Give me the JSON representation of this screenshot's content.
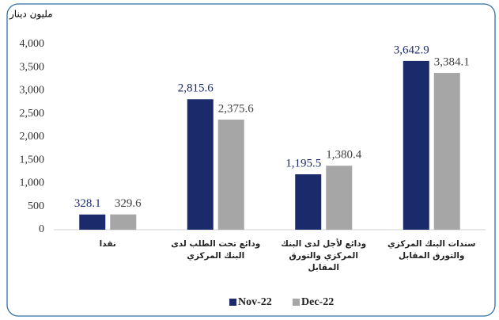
{
  "chart_data": {
    "type": "bar",
    "y_axis_label": "مليون دينار",
    "categories": [
      "نقدا",
      "ودائع تحت الطلب لدى البنك المركزي",
      "ودائع لأجل لدى البنك المركزي والتورق المقابل",
      "سندات البنك المركزي والتورق المقابل"
    ],
    "series": [
      {
        "name": "Nov-22",
        "color": "#1b2a6b",
        "label_color": "#1b2a6b",
        "values": [
          328.1,
          2815.6,
          1195.5,
          3642.9
        ],
        "value_labels": [
          "328.1",
          "2,815.6",
          "1,195.5",
          "3,642.9"
        ]
      },
      {
        "name": "Dec-22",
        "color": "#a6a6a6",
        "label_color": "#404040",
        "values": [
          329.6,
          2375.6,
          1380.4,
          3384.1
        ],
        "value_labels": [
          "329.6",
          "2,375.6",
          "1,380.4",
          "3,384.1"
        ]
      }
    ],
    "ylim": [
      0,
      4000
    ],
    "yticks": [
      0,
      500,
      {
        "value": 1000,
        "label": "1,000"
      },
      {
        "value": 1500,
        "label": "1,500"
      },
      {
        "value": 2000,
        "label": "2,000"
      },
      {
        "value": 2500,
        "label": "2,500"
      },
      {
        "value": 3000,
        "label": "3,000"
      },
      {
        "value": 3500,
        "label": "3,500"
      },
      {
        "value": 4000,
        "label": "4,000"
      }
    ],
    "legend": "bottom",
    "grid": false
  }
}
